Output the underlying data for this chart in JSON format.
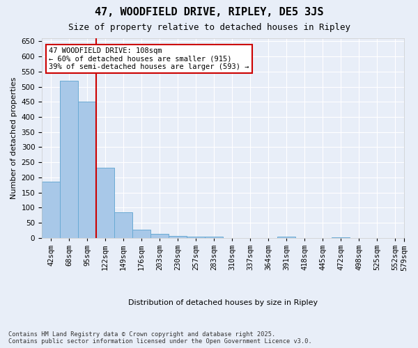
{
  "title": "47, WOODFIELD DRIVE, RIPLEY, DE5 3JS",
  "subtitle": "Size of property relative to detached houses in Ripley",
  "xlabel": "Distribution of detached houses by size in Ripley",
  "ylabel": "Number of detached properties",
  "bins": [
    "42sqm",
    "68sqm",
    "95sqm",
    "122sqm",
    "149sqm",
    "176sqm",
    "203sqm",
    "230sqm",
    "257sqm",
    "283sqm",
    "310sqm",
    "337sqm",
    "364sqm",
    "391sqm",
    "418sqm",
    "445sqm",
    "472sqm",
    "498sqm",
    "525sqm",
    "552sqm",
    "579sqm"
  ],
  "values": [
    185,
    520,
    450,
    232,
    85,
    28,
    14,
    7,
    4,
    5,
    0,
    0,
    0,
    4,
    0,
    0,
    1,
    0,
    0,
    0
  ],
  "bar_color": "#a8c8e8",
  "bar_edgecolor": "#6aaad4",
  "annotation_text": "47 WOODFIELD DRIVE: 108sqm\n← 60% of detached houses are smaller (915)\n39% of semi-detached houses are larger (593) →",
  "annotation_box_color": "#ffffff",
  "annotation_box_edgecolor": "#cc0000",
  "vline_color": "#cc0000",
  "ylim": [
    0,
    660
  ],
  "yticks": [
    0,
    50,
    100,
    150,
    200,
    250,
    300,
    350,
    400,
    450,
    500,
    550,
    600,
    650
  ],
  "background_color": "#e8eef8",
  "grid_color": "#ffffff",
  "footer_line1": "Contains HM Land Registry data © Crown copyright and database right 2025.",
  "footer_line2": "Contains public sector information licensed under the Open Government Licence v3.0.",
  "title_fontsize": 11,
  "subtitle_fontsize": 9,
  "axis_label_fontsize": 8,
  "tick_fontsize": 7.5
}
